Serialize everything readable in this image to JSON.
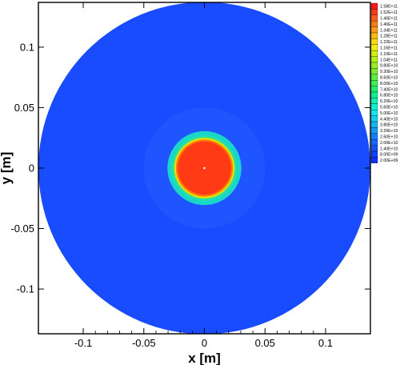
{
  "chart_data": {
    "type": "heatmap",
    "title": "",
    "xlabel": "x [m]",
    "ylabel": "y [m]",
    "xlim": [
      -0.137,
      0.137
    ],
    "ylim": [
      -0.137,
      0.137
    ],
    "x_ticks": [
      {
        "value": -0.1,
        "label": "-0.1"
      },
      {
        "value": -0.05,
        "label": "-0.05"
      },
      {
        "value": 0,
        "label": "0"
      },
      {
        "value": 0.05,
        "label": "0.05"
      },
      {
        "value": 0.1,
        "label": "0.1"
      }
    ],
    "y_ticks": [
      {
        "value": 0.1,
        "label": "0.1"
      },
      {
        "value": 0.05,
        "label": "0.05"
      },
      {
        "value": 0,
        "label": "0"
      },
      {
        "value": -0.05,
        "label": "-0.05"
      },
      {
        "value": -0.1,
        "label": "-0.1"
      }
    ],
    "rings": [
      {
        "outer_radius": 0.137,
        "value": 2000000000.0,
        "color": "#1a4cff"
      },
      {
        "outer_radius": 0.05,
        "value": 2500000000.0,
        "color": "#1f55ff"
      },
      {
        "outer_radius": 0.0305,
        "value": 36000000000.0,
        "color": "#1ad6c8"
      },
      {
        "outer_radius": 0.027,
        "value": 40000000000.0,
        "color": "#26e0a8"
      },
      {
        "outer_radius": 0.025,
        "value": 100000000000.0,
        "color": "#e6e000"
      },
      {
        "outer_radius": 0.0235,
        "value": 130000000000.0,
        "color": "#ff7a00"
      },
      {
        "outer_radius": 0.022,
        "value": 150000000000.0,
        "color": "#ff3a14"
      }
    ],
    "legend": {
      "placement": "right",
      "levels": [
        {
          "label": "1.58E+11",
          "color": "#ff1a1a"
        },
        {
          "label": "1.52E+11",
          "color": "#ff3a1a"
        },
        {
          "label": "1.46E+11",
          "color": "#ff5a1a"
        },
        {
          "label": "1.40E+11",
          "color": "#ff7a10"
        },
        {
          "label": "1.34E+11",
          "color": "#ff9a10"
        },
        {
          "label": "1.28E+11",
          "color": "#ffba10"
        },
        {
          "label": "1.22E+11",
          "color": "#ffd810"
        },
        {
          "label": "1.16E+11",
          "color": "#f2ec10"
        },
        {
          "label": "1.10E+11",
          "color": "#d8f010"
        },
        {
          "label": "1.04E+11",
          "color": "#b8f010"
        },
        {
          "label": "9.80E+10",
          "color": "#98f020"
        },
        {
          "label": "9.20E+10",
          "color": "#78f030"
        },
        {
          "label": "8.60E+10",
          "color": "#58f040"
        },
        {
          "label": "8.00E+10",
          "color": "#38f050"
        },
        {
          "label": "7.40E+10",
          "color": "#20f070"
        },
        {
          "label": "6.80E+10",
          "color": "#10f090"
        },
        {
          "label": "6.20E+10",
          "color": "#10f0b0"
        },
        {
          "label": "5.60E+10",
          "color": "#10f0d0"
        },
        {
          "label": "5.00E+10",
          "color": "#10e8f0"
        },
        {
          "label": "4.40E+10",
          "color": "#10d0f0"
        },
        {
          "label": "3.80E+10",
          "color": "#10b8f8"
        },
        {
          "label": "3.20E+10",
          "color": "#109cf8"
        },
        {
          "label": "2.60E+10",
          "color": "#1080ff"
        },
        {
          "label": "2.00E+10",
          "color": "#1068ff"
        },
        {
          "label": "1.40E+10",
          "color": "#1054ff"
        },
        {
          "label": "8.00E+09",
          "color": "#1040ff"
        },
        {
          "label": "2.00E+09",
          "color": "#1030ff"
        }
      ]
    }
  }
}
